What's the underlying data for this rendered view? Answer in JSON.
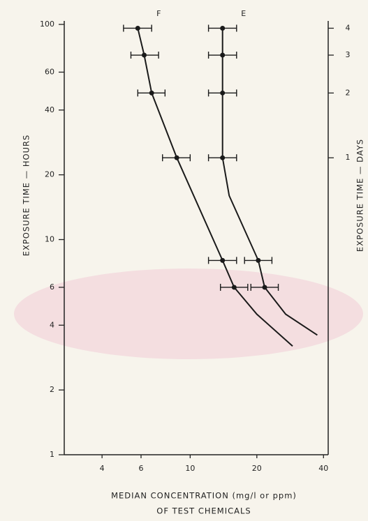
{
  "chart_data": {
    "type": "scatter",
    "xlabel": [
      "MEDIAN CONCENTRATION (mg/l or ppm)",
      "OF TEST CHEMICALS"
    ],
    "ylabel": "EXPOSURE TIME — HOURS",
    "y2label": "EXPOSURE TIME — DAYS",
    "xscale": "log",
    "yscale": "log",
    "xlim": [
      2.7,
      42
    ],
    "ylim": [
      1,
      100
    ],
    "y2lim": [
      0.0417,
      4.1667
    ],
    "xticks": [
      4,
      6,
      10,
      20,
      40
    ],
    "yticks": [
      1,
      2,
      4,
      6,
      10,
      20,
      40,
      60,
      100
    ],
    "y2ticks": [
      1,
      2,
      3,
      4
    ],
    "color": "#1a1a1a",
    "series": [
      {
        "name": "F",
        "x": [
          5.8,
          6.2,
          6.7,
          8.7,
          14.0,
          15.8
        ],
        "values": [
          96,
          72,
          48,
          24,
          8,
          6
        ],
        "x_low": [
          5.0,
          5.4,
          5.8,
          7.5,
          12.1,
          13.7
        ],
        "x_high": [
          6.7,
          7.2,
          7.7,
          10,
          16.2,
          18.2
        ],
        "fit_x": [
          5.8,
          6.2,
          6.7,
          8.7,
          14.0,
          15.8,
          20,
          29
        ],
        "fit_y": [
          96,
          72,
          48,
          24,
          8,
          6,
          4.5,
          3.2
        ]
      },
      {
        "name": "E",
        "x": [
          14.0,
          14.0,
          14.0,
          14.0,
          20.3,
          21.7
        ],
        "values": [
          96,
          72,
          48,
          24,
          8,
          6
        ],
        "x_low": [
          12.1,
          12.1,
          12.1,
          12.1,
          17.6,
          18.8
        ],
        "x_high": [
          16.2,
          16.2,
          16.2,
          16.2,
          23.4,
          25
        ],
        "fit_x": [
          14.0,
          14.0,
          14.0,
          15,
          20.3,
          21.7,
          27,
          37.5
        ],
        "fit_y": [
          96,
          48,
          24,
          16,
          8,
          6,
          4.5,
          3.6
        ]
      }
    ]
  }
}
